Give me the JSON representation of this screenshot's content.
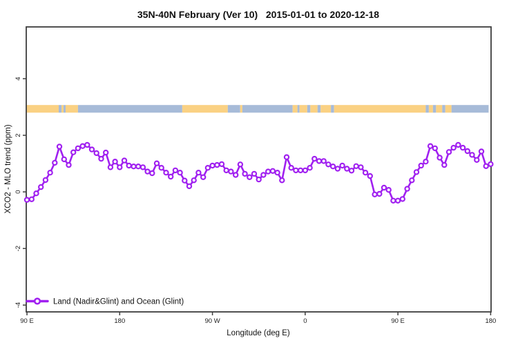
{
  "chart_data": {
    "type": "line",
    "title": "35N-40N February (Ver 10)   2015-01-01 to 2020-12-18",
    "xlabel": "Longitude (deg E)",
    "ylabel": "XCO2 - MLO trend (ppm)",
    "x_unit": "longitude axis position in deg E, wrapping eastward past 180 (90E to 180 to 90W to 0 to 90E to 180)",
    "x_axis": {
      "min": 89.3,
      "max": 540.4,
      "ticks": [
        {
          "pos": 90,
          "label": "90 E"
        },
        {
          "pos": 180,
          "label": "180"
        },
        {
          "pos": 270,
          "label": "90 W"
        },
        {
          "pos": 360,
          "label": "0"
        },
        {
          "pos": 450,
          "label": "90 E"
        },
        {
          "pos": 540,
          "label": "180"
        }
      ]
    },
    "y_axis": {
      "min": -4.24,
      "max": 5.83,
      "ticks": [
        {
          "pos": -4,
          "label": "-4"
        },
        {
          "pos": -2,
          "label": "-2"
        },
        {
          "pos": 0,
          "label": "0"
        },
        {
          "pos": 2,
          "label": "2"
        },
        {
          "pos": 4,
          "label": "4"
        }
      ]
    },
    "grid": false,
    "legend": {
      "position": "bottom-left",
      "label": "Land (Nadir&Glint) and Ocean (Glint)",
      "line_color": "#A020F0",
      "marker": "open-circle"
    },
    "surface_band": {
      "description": "horizontal strip showing surface type vs longitude",
      "top": 3.07,
      "bottom": 2.8,
      "colors": {
        "land": "#FAD183",
        "ocean": "#A7BBD8"
      },
      "segments": [
        {
          "from": 89.3,
          "to": 120.8,
          "type": "land"
        },
        {
          "from": 120.8,
          "to": 123.5,
          "type": "ocean"
        },
        {
          "from": 123.5,
          "to": 125.5,
          "type": "land"
        },
        {
          "from": 125.5,
          "to": 127.5,
          "type": "ocean"
        },
        {
          "from": 127.5,
          "to": 139.5,
          "type": "land"
        },
        {
          "from": 139.5,
          "to": 240.7,
          "type": "ocean"
        },
        {
          "from": 240.7,
          "to": 284.9,
          "type": "land"
        },
        {
          "from": 284.9,
          "to": 296.9,
          "type": "ocean"
        },
        {
          "from": 296.9,
          "to": 299.0,
          "type": "land"
        },
        {
          "from": 299.0,
          "to": 347.8,
          "type": "ocean"
        },
        {
          "from": 347.8,
          "to": 352.5,
          "type": "land"
        },
        {
          "from": 352.5,
          "to": 354.5,
          "type": "ocean"
        },
        {
          "from": 354.5,
          "to": 362.0,
          "type": "land"
        },
        {
          "from": 362.0,
          "to": 365.0,
          "type": "ocean"
        },
        {
          "from": 365.0,
          "to": 372.0,
          "type": "land"
        },
        {
          "from": 372.0,
          "to": 375.0,
          "type": "ocean"
        },
        {
          "from": 375.0,
          "to": 385.0,
          "type": "land"
        },
        {
          "from": 385.0,
          "to": 388.0,
          "type": "ocean"
        },
        {
          "from": 388.0,
          "to": 477.0,
          "type": "land"
        },
        {
          "from": 477.0,
          "to": 480.0,
          "type": "ocean"
        },
        {
          "from": 480.0,
          "to": 484.0,
          "type": "land"
        },
        {
          "from": 484.0,
          "to": 487.0,
          "type": "ocean"
        },
        {
          "from": 487.0,
          "to": 493.0,
          "type": "land"
        },
        {
          "from": 493.0,
          "to": 496.0,
          "type": "ocean"
        },
        {
          "from": 496.0,
          "to": 502.0,
          "type": "land"
        },
        {
          "from": 502.0,
          "to": 538.0,
          "type": "ocean"
        }
      ]
    },
    "series": [
      {
        "name": "Land (Nadir&Glint) and Ocean (Glint)",
        "color": "#A020F0",
        "marker": "open-circle",
        "x": [
          90,
          94.5,
          99,
          103.5,
          108,
          112.5,
          117,
          121.5,
          126,
          130.5,
          135,
          139.5,
          144,
          148.5,
          153,
          157.5,
          162,
          166.5,
          171,
          175.5,
          180,
          184.5,
          189,
          193.5,
          198,
          202.5,
          207,
          211.5,
          216,
          220.5,
          225,
          229.5,
          234,
          238.5,
          243,
          247.5,
          252,
          256.5,
          261,
          265.5,
          270,
          274.5,
          279,
          283.5,
          288,
          292.5,
          297,
          301.5,
          306,
          310.5,
          315,
          319.5,
          324,
          328.5,
          333,
          337.5,
          342,
          346.5,
          351,
          355.5,
          360,
          364.5,
          369,
          373.5,
          378,
          382.5,
          387,
          391.5,
          396,
          400.5,
          405,
          409.5,
          414,
          418.5,
          423,
          427.5,
          432,
          436.5,
          441,
          445.5,
          450,
          454.5,
          459,
          463.5,
          468,
          472.5,
          477,
          481.5,
          486,
          490.5,
          495,
          499.5,
          504,
          508.5,
          513,
          517.5,
          522,
          526.5,
          531,
          535.5,
          540
        ],
        "values": [
          -0.28,
          -0.26,
          -0.05,
          0.17,
          0.42,
          0.68,
          1.03,
          1.6,
          1.15,
          0.95,
          1.4,
          1.54,
          1.62,
          1.66,
          1.5,
          1.37,
          1.17,
          1.39,
          0.87,
          1.07,
          0.87,
          1.11,
          0.93,
          0.9,
          0.9,
          0.87,
          0.72,
          0.66,
          1.01,
          0.85,
          0.68,
          0.54,
          0.76,
          0.68,
          0.4,
          0.2,
          0.41,
          0.68,
          0.52,
          0.85,
          0.93,
          0.95,
          0.98,
          0.76,
          0.72,
          0.6,
          0.97,
          0.64,
          0.52,
          0.64,
          0.44,
          0.6,
          0.72,
          0.74,
          0.68,
          0.41,
          1.23,
          0.85,
          0.76,
          0.76,
          0.76,
          0.85,
          1.17,
          1.09,
          1.09,
          0.97,
          0.9,
          0.82,
          0.93,
          0.82,
          0.75,
          0.91,
          0.87,
          0.68,
          0.56,
          -0.09,
          -0.07,
          0.15,
          0.07,
          -0.31,
          -0.31,
          -0.25,
          0.11,
          0.41,
          0.7,
          0.93,
          1.07,
          1.62,
          1.54,
          1.21,
          0.95,
          1.41,
          1.56,
          1.66,
          1.56,
          1.44,
          1.31,
          1.13,
          1.43,
          0.91,
          0.98
        ]
      }
    ]
  }
}
